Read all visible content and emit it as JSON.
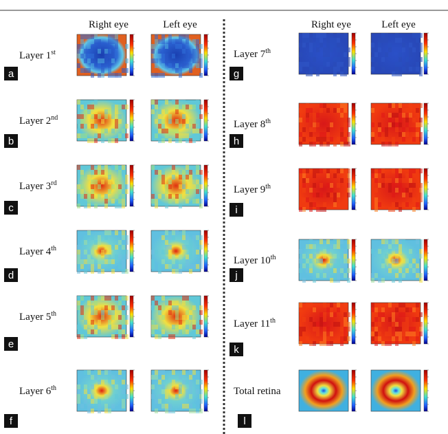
{
  "left_panel": {
    "headers": [
      "Right eye",
      "Left eye"
    ],
    "rows": [
      {
        "letter": "a",
        "label": "Layer 1",
        "suffix": "st"
      },
      {
        "letter": "b",
        "label": "Layer 2",
        "suffix": "nd"
      },
      {
        "letter": "c",
        "label": "Layer 3",
        "suffix": "rd"
      },
      {
        "letter": "d",
        "label": "Layer 4",
        "suffix": "th"
      },
      {
        "letter": "e",
        "label": "Layer 5",
        "suffix": "th"
      },
      {
        "letter": "f",
        "label": "Layer 6",
        "suffix": "th"
      }
    ]
  },
  "right_panel": {
    "headers": [
      "Right eye",
      "Left eye"
    ],
    "rows": [
      {
        "letter": "g",
        "label": "Layer 7",
        "suffix": "th"
      },
      {
        "letter": "h",
        "label": "Layer 8",
        "suffix": "th"
      },
      {
        "letter": "i",
        "label": "Layer 9",
        "suffix": "th"
      },
      {
        "letter": "j",
        "label": "Layer 10",
        "suffix": "th"
      },
      {
        "letter": "k",
        "label": "Layer 11",
        "suffix": "th"
      },
      {
        "letter": "l",
        "label": "Total retina"
      }
    ]
  }
}
